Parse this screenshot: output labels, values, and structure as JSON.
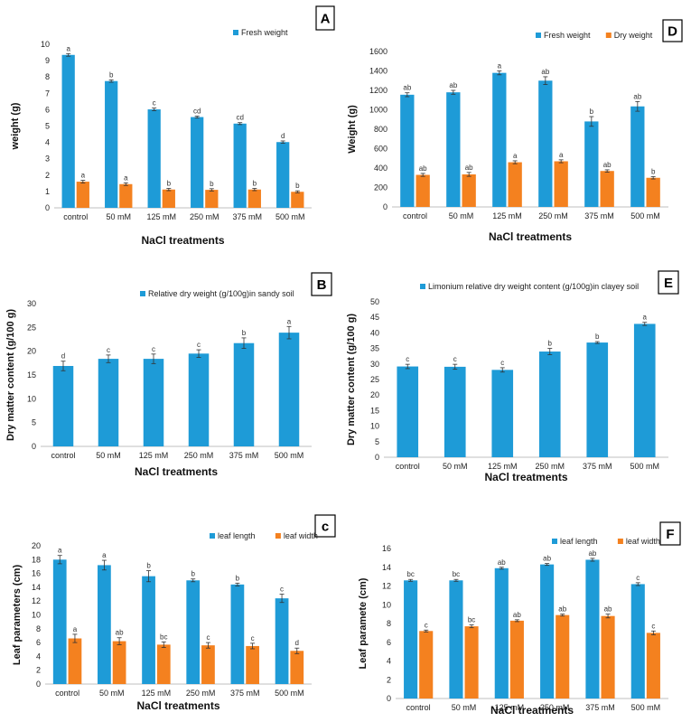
{
  "colors": {
    "blue": "#1E9BD7",
    "orange": "#F4811F",
    "axis": "#BFBFBF",
    "error": "#333333"
  },
  "chart_data": [
    {
      "id": "A",
      "type": "bar",
      "title": "",
      "categories": [
        "control",
        "50 mM",
        "125 mM",
        "250 mM",
        "375 mM",
        "500 mM"
      ],
      "series": [
        {
          "name": "Fresh weight",
          "color": "blue",
          "values": [
            9.35,
            7.75,
            6.02,
            5.55,
            5.15,
            4.02
          ],
          "errors": [
            0.08,
            0.07,
            0.08,
            0.06,
            0.06,
            0.07
          ],
          "labels": [
            "a",
            "b",
            "c",
            "cd",
            "cd",
            "d"
          ]
        },
        {
          "name": "",
          "color": "orange",
          "values": [
            1.6,
            1.45,
            1.12,
            1.1,
            1.12,
            0.98
          ],
          "errors": [
            0.08,
            0.08,
            0.07,
            0.07,
            0.07,
            0.06
          ],
          "labels": [
            "a",
            "a",
            "b",
            "b",
            "b",
            "b"
          ]
        }
      ],
      "legend": [
        "Fresh weight"
      ],
      "xlabel": "NaCl treatments",
      "ylabel": "weight (g)",
      "ylim": [
        0,
        10
      ],
      "yticks": [
        0,
        1,
        2,
        3,
        4,
        5,
        6,
        7,
        8,
        9,
        10
      ]
    },
    {
      "id": "D",
      "type": "bar",
      "title": "",
      "categories": [
        "control",
        "50 mM",
        "125 mM",
        "250 mM",
        "375 mM",
        "500 mM"
      ],
      "series": [
        {
          "name": "Fresh weight",
          "color": "blue",
          "values": [
            1155,
            1180,
            1380,
            1300,
            880,
            1035
          ],
          "errors": [
            20,
            20,
            20,
            40,
            50,
            50
          ],
          "labels": [
            "ab",
            "ab",
            "a",
            "ab",
            "b",
            "ab"
          ]
        },
        {
          "name": "Dry weight",
          "color": "orange",
          "values": [
            330,
            335,
            460,
            470,
            370,
            300
          ],
          "errors": [
            15,
            20,
            15,
            15,
            12,
            12
          ],
          "labels": [
            "ab",
            "ab",
            "a",
            "a",
            "ab",
            "b"
          ]
        }
      ],
      "legend": [
        "Fresh weight",
        "Dry weight"
      ],
      "xlabel": "NaCl treatments",
      "ylabel": "Weight (g)",
      "ylim": [
        0,
        1600
      ],
      "yticks": [
        0,
        200,
        400,
        600,
        800,
        1000,
        1200,
        1400,
        1600
      ]
    },
    {
      "id": "B",
      "type": "bar",
      "title": "",
      "categories": [
        "control",
        "50 mM",
        "125 mM",
        "250 mM",
        "375 mM",
        "500 mM"
      ],
      "series": [
        {
          "name": "Relative dry weight (g/100g)in sandy soil",
          "color": "blue",
          "values": [
            16.9,
            18.4,
            18.4,
            19.5,
            21.7,
            23.9
          ],
          "errors": [
            1.0,
            0.8,
            1.0,
            0.8,
            1.1,
            1.3
          ],
          "labels": [
            "d",
            "c",
            "c",
            "c",
            "b",
            "a"
          ]
        }
      ],
      "legend": [
        "Relative dry weight (g/100g)in sandy soil"
      ],
      "xlabel": "NaCl treatments",
      "ylabel": "Dry matter content (g/100 g)",
      "ylim": [
        0,
        30
      ],
      "yticks": [
        0,
        5,
        10,
        15,
        20,
        25,
        30
      ]
    },
    {
      "id": "E",
      "type": "bar",
      "title": "",
      "categories": [
        "control",
        "50 mM",
        "125 mM",
        "250 mM",
        "375 mM",
        "500 mM"
      ],
      "series": [
        {
          "name": "Limonium relative dry weight content (g/100g)in clayey soil",
          "color": "blue",
          "values": [
            29.2,
            29.1,
            28.1,
            34.0,
            36.9,
            42.9
          ],
          "errors": [
            0.7,
            0.8,
            0.7,
            1.0,
            0.3,
            0.5
          ],
          "labels": [
            "c",
            "c",
            "c",
            "b",
            "b",
            "a"
          ]
        }
      ],
      "legend": [
        "Limonium relative dry weight content (g/100g)in clayey soil"
      ],
      "xlabel": "NaCl treatments",
      "ylabel": "Dry matter content (g/100 g)",
      "ylim": [
        0,
        50
      ],
      "yticks": [
        0,
        5,
        10,
        15,
        20,
        25,
        30,
        35,
        40,
        45,
        50
      ]
    },
    {
      "id": "c",
      "type": "bar",
      "title": "",
      "categories": [
        "control",
        "50 mM",
        "125 mM",
        "250 mM",
        "375 mM",
        "500 mM"
      ],
      "series": [
        {
          "name": "leaf length",
          "color": "blue",
          "values": [
            18.0,
            17.2,
            15.6,
            15.0,
            14.4,
            12.4
          ],
          "errors": [
            0.6,
            0.7,
            0.8,
            0.2,
            0.2,
            0.6
          ],
          "labels": [
            "a",
            "a",
            "b",
            "b",
            "b",
            "c"
          ]
        },
        {
          "name": "leaf width",
          "color": "orange",
          "values": [
            6.6,
            6.2,
            5.7,
            5.6,
            5.5,
            4.8
          ],
          "errors": [
            0.6,
            0.5,
            0.4,
            0.4,
            0.4,
            0.4
          ],
          "labels": [
            "a",
            "ab",
            "bc",
            "c",
            "c",
            "d"
          ]
        }
      ],
      "legend": [
        "leaf length",
        "leaf width"
      ],
      "xlabel": "NaCl treatments",
      "ylabel": "Leaf parameters (cm)",
      "ylim": [
        0,
        20
      ],
      "yticks": [
        0,
        2,
        4,
        6,
        8,
        10,
        12,
        14,
        16,
        18,
        20
      ]
    },
    {
      "id": "F",
      "type": "bar",
      "title": "",
      "categories": [
        "control",
        "50 mM",
        "125 mM",
        "250 mM",
        "375 mM",
        "500 mM"
      ],
      "series": [
        {
          "name": "leaf length",
          "color": "blue",
          "values": [
            12.6,
            12.6,
            13.9,
            14.3,
            14.8,
            12.2
          ],
          "errors": [
            0.1,
            0.1,
            0.1,
            0.1,
            0.15,
            0.15
          ],
          "labels": [
            "bc",
            "bc",
            "ab",
            "ab",
            "ab",
            "c"
          ]
        },
        {
          "name": "leaf width",
          "color": "orange",
          "values": [
            7.2,
            7.7,
            8.3,
            8.9,
            8.8,
            7.0
          ],
          "errors": [
            0.1,
            0.15,
            0.1,
            0.1,
            0.2,
            0.2
          ],
          "labels": [
            "c",
            "bc",
            "ab",
            "ab",
            "ab",
            "c"
          ]
        }
      ],
      "legend": [
        "leaf length",
        "leaf width"
      ],
      "xlabel": "NaCl treatments",
      "ylabel": "Leaf paramete (cm)",
      "ylim": [
        0,
        16
      ],
      "yticks": [
        0,
        2,
        4,
        6,
        8,
        10,
        12,
        14,
        16
      ]
    }
  ]
}
